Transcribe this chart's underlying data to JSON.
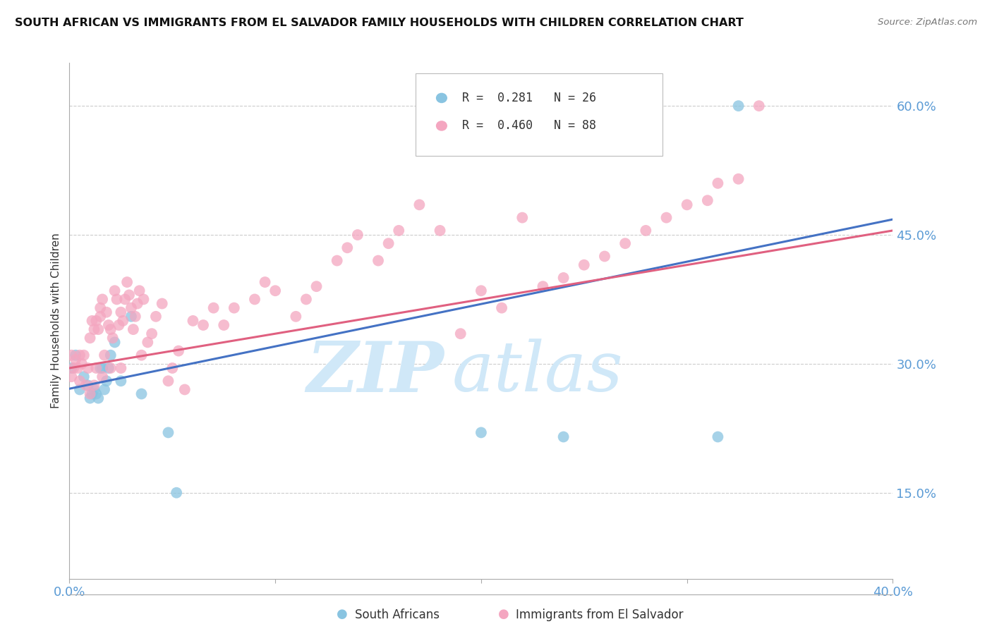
{
  "title": "SOUTH AFRICAN VS IMMIGRANTS FROM EL SALVADOR FAMILY HOUSEHOLDS WITH CHILDREN CORRELATION CHART",
  "source": "Source: ZipAtlas.com",
  "ylabel": "Family Households with Children",
  "xmin": 0.0,
  "xmax": 0.4,
  "ymin": 0.05,
  "ymax": 0.65,
  "yticks": [
    0.15,
    0.3,
    0.45,
    0.6
  ],
  "ytick_labels": [
    "15.0%",
    "30.0%",
    "45.0%",
    "60.0%"
  ],
  "xticks": [
    0.0,
    0.1,
    0.2,
    0.3,
    0.4
  ],
  "xtick_labels": [
    "0.0%",
    "",
    "",
    "",
    "40.0%"
  ],
  "color_blue": "#89c4e1",
  "color_pink": "#f4a6c0",
  "line_blue": "#4472c4",
  "line_pink": "#e06080",
  "background": "#ffffff",
  "grid_color": "#cccccc",
  "axis_label_color": "#5b9bd5",
  "sa_R": 0.281,
  "sa_N": 26,
  "elsal_R": 0.46,
  "elsal_N": 88,
  "sa_line_x0": 0.0,
  "sa_line_y0": 0.271,
  "sa_line_x1": 0.4,
  "sa_line_y1": 0.468,
  "elsal_line_x0": 0.0,
  "elsal_line_y0": 0.295,
  "elsal_line_x1": 0.4,
  "elsal_line_y1": 0.455,
  "sa_x": [
    0.001,
    0.003,
    0.005,
    0.007,
    0.009,
    0.01,
    0.011,
    0.012,
    0.013,
    0.014,
    0.015,
    0.016,
    0.017,
    0.018,
    0.019,
    0.02,
    0.022,
    0.025,
    0.03,
    0.035,
    0.048,
    0.052,
    0.2,
    0.24,
    0.315,
    0.325
  ],
  "sa_y": [
    0.295,
    0.31,
    0.27,
    0.285,
    0.275,
    0.26,
    0.265,
    0.27,
    0.265,
    0.26,
    0.295,
    0.295,
    0.27,
    0.28,
    0.295,
    0.31,
    0.325,
    0.28,
    0.355,
    0.265,
    0.22,
    0.15,
    0.22,
    0.215,
    0.215,
    0.6
  ],
  "elsal_x": [
    0.001,
    0.001,
    0.002,
    0.003,
    0.004,
    0.005,
    0.005,
    0.006,
    0.007,
    0.008,
    0.009,
    0.01,
    0.01,
    0.011,
    0.012,
    0.012,
    0.013,
    0.013,
    0.014,
    0.015,
    0.015,
    0.016,
    0.016,
    0.017,
    0.018,
    0.019,
    0.02,
    0.02,
    0.021,
    0.022,
    0.023,
    0.024,
    0.025,
    0.025,
    0.026,
    0.027,
    0.028,
    0.029,
    0.03,
    0.031,
    0.032,
    0.033,
    0.034,
    0.035,
    0.036,
    0.038,
    0.04,
    0.042,
    0.045,
    0.048,
    0.05,
    0.053,
    0.056,
    0.06,
    0.065,
    0.07,
    0.075,
    0.08,
    0.09,
    0.095,
    0.1,
    0.11,
    0.115,
    0.12,
    0.13,
    0.135,
    0.14,
    0.15,
    0.155,
    0.16,
    0.17,
    0.18,
    0.19,
    0.2,
    0.21,
    0.22,
    0.23,
    0.24,
    0.25,
    0.26,
    0.27,
    0.28,
    0.29,
    0.3,
    0.31,
    0.315,
    0.325,
    0.335
  ],
  "elsal_y": [
    0.285,
    0.31,
    0.295,
    0.305,
    0.295,
    0.28,
    0.31,
    0.3,
    0.31,
    0.275,
    0.295,
    0.265,
    0.33,
    0.35,
    0.275,
    0.34,
    0.295,
    0.35,
    0.34,
    0.365,
    0.355,
    0.285,
    0.375,
    0.31,
    0.36,
    0.345,
    0.295,
    0.34,
    0.33,
    0.385,
    0.375,
    0.345,
    0.295,
    0.36,
    0.35,
    0.375,
    0.395,
    0.38,
    0.365,
    0.34,
    0.355,
    0.37,
    0.385,
    0.31,
    0.375,
    0.325,
    0.335,
    0.355,
    0.37,
    0.28,
    0.295,
    0.315,
    0.27,
    0.35,
    0.345,
    0.365,
    0.345,
    0.365,
    0.375,
    0.395,
    0.385,
    0.355,
    0.375,
    0.39,
    0.42,
    0.435,
    0.45,
    0.42,
    0.44,
    0.455,
    0.485,
    0.455,
    0.335,
    0.385,
    0.365,
    0.47,
    0.39,
    0.4,
    0.415,
    0.425,
    0.44,
    0.455,
    0.47,
    0.485,
    0.49,
    0.51,
    0.515,
    0.6
  ]
}
